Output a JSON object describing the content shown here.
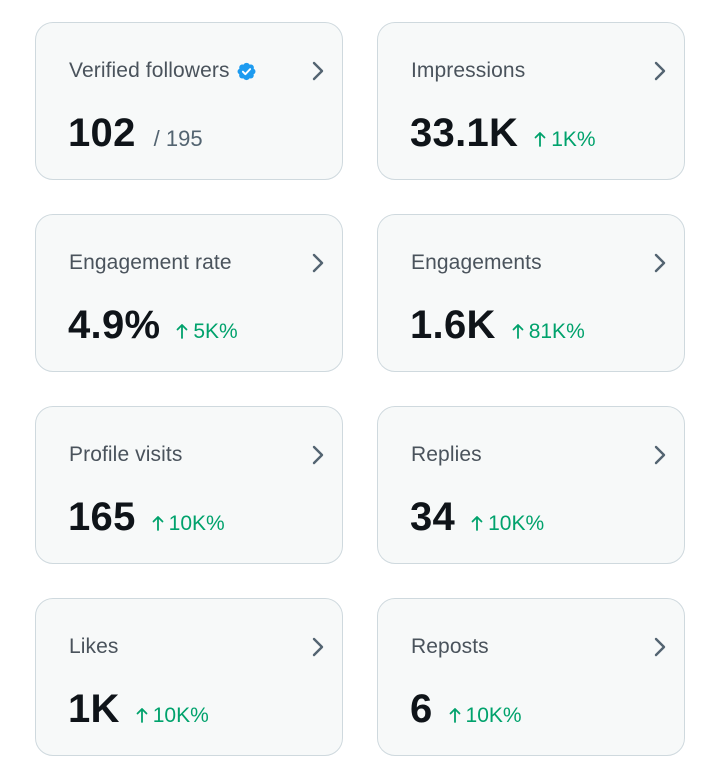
{
  "cards": [
    {
      "title": "Verified followers",
      "value": "102",
      "total": "/ 195",
      "change": "",
      "verified": true
    },
    {
      "title": "Impressions",
      "value": "33.1K",
      "total": "",
      "change": "1K%"
    },
    {
      "title": "Engagement rate",
      "value": "4.9%",
      "total": "",
      "change": "5K%"
    },
    {
      "title": "Engagements",
      "value": "1.6K",
      "total": "",
      "change": "81K%"
    },
    {
      "title": "Profile visits",
      "value": "165",
      "total": "",
      "change": "10K%"
    },
    {
      "title": "Replies",
      "value": "34",
      "total": "",
      "change": "10K%"
    },
    {
      "title": "Likes",
      "value": "1K",
      "total": "",
      "change": "10K%"
    },
    {
      "title": "Reposts",
      "value": "6",
      "total": "",
      "change": "10K%"
    }
  ],
  "colors": {
    "positive_change": "#00a26c",
    "verified_badge": "#1d9bf0",
    "card_background": "#f7f9f9",
    "card_border": "#cfd9de"
  },
  "icons": {
    "chevron": "chevron-right-icon",
    "verified": "verified-badge-icon",
    "trend": "arrow-up-icon"
  }
}
